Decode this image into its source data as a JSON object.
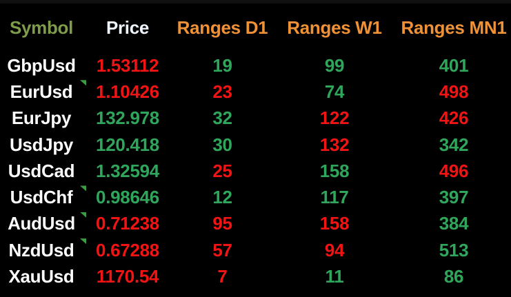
{
  "colors": {
    "background": "#000000",
    "up": "#2fa65c",
    "down": "#f01414",
    "marker": "#3f9c46",
    "header_symbol": "#7e9c4a",
    "header_price": "#eef5fd",
    "header_ranges": "#ef9237",
    "symbol_text": "#fcfcfc"
  },
  "table": {
    "headers": [
      {
        "label": "Symbol",
        "color": "#7e9c4a"
      },
      {
        "label": "Price",
        "color": "#eef5fd"
      },
      {
        "label": "Ranges D1",
        "color": "#ef9237"
      },
      {
        "label": "Ranges W1",
        "color": "#ef9237"
      },
      {
        "label": "Ranges MN1",
        "color": "#ef9237"
      }
    ],
    "rows": [
      {
        "symbol": "GbpUsd",
        "price": "1.53112",
        "price_dir": "down",
        "d1": "19",
        "d1_dir": "up",
        "w1": "99",
        "w1_dir": "up",
        "mn1": "401",
        "mn1_dir": "up",
        "marker": false
      },
      {
        "symbol": "EurUsd",
        "price": "1.10426",
        "price_dir": "down",
        "d1": "23",
        "d1_dir": "down",
        "w1": "74",
        "w1_dir": "up",
        "mn1": "498",
        "mn1_dir": "down",
        "marker": true
      },
      {
        "symbol": "EurJpy",
        "price": "132.978",
        "price_dir": "up",
        "d1": "32",
        "d1_dir": "up",
        "w1": "122",
        "w1_dir": "down",
        "mn1": "426",
        "mn1_dir": "down",
        "marker": false
      },
      {
        "symbol": "UsdJpy",
        "price": "120.418",
        "price_dir": "up",
        "d1": "30",
        "d1_dir": "up",
        "w1": "132",
        "w1_dir": "down",
        "mn1": "342",
        "mn1_dir": "up",
        "marker": false
      },
      {
        "symbol": "UsdCad",
        "price": "1.32594",
        "price_dir": "up",
        "d1": "25",
        "d1_dir": "down",
        "w1": "158",
        "w1_dir": "up",
        "mn1": "496",
        "mn1_dir": "down",
        "marker": false
      },
      {
        "symbol": "UsdChf",
        "price": "0.98646",
        "price_dir": "up",
        "d1": "12",
        "d1_dir": "up",
        "w1": "117",
        "w1_dir": "up",
        "mn1": "397",
        "mn1_dir": "up",
        "marker": true
      },
      {
        "symbol": "AudUsd",
        "price": "0.71238",
        "price_dir": "down",
        "d1": "95",
        "d1_dir": "down",
        "w1": "158",
        "w1_dir": "down",
        "mn1": "384",
        "mn1_dir": "up",
        "marker": true
      },
      {
        "symbol": "NzdUsd",
        "price": "0.67288",
        "price_dir": "down",
        "d1": "57",
        "d1_dir": "down",
        "w1": "94",
        "w1_dir": "down",
        "mn1": "513",
        "mn1_dir": "up",
        "marker": true
      },
      {
        "symbol": "XauUsd",
        "price": "1170.54",
        "price_dir": "down",
        "d1": "7",
        "d1_dir": "down",
        "w1": "11",
        "w1_dir": "up",
        "mn1": "86",
        "mn1_dir": "up",
        "marker": false
      }
    ]
  }
}
